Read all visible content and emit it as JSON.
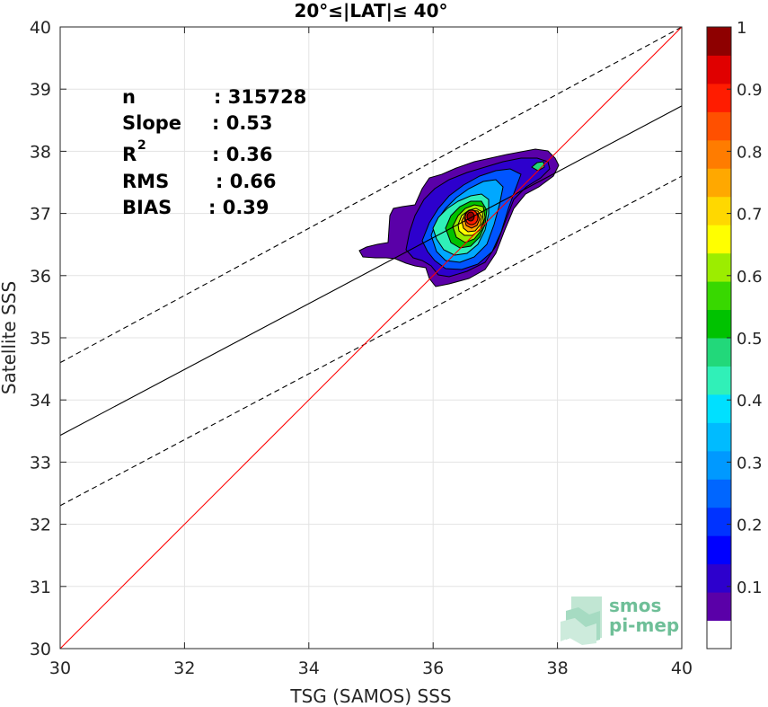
{
  "chart_data": {
    "type": "heatmap",
    "title": "20°≤|LAT|≤ 40°",
    "xlabel": "TSG (SAMOS) SSS",
    "ylabel": "Satellite SSS",
    "xlim": [
      30,
      40
    ],
    "ylim": [
      30,
      40
    ],
    "x_ticks": [
      "30",
      "32",
      "34",
      "36",
      "38",
      "40"
    ],
    "y_ticks": [
      "30",
      "31",
      "32",
      "33",
      "34",
      "35",
      "36",
      "37",
      "38",
      "39",
      "40"
    ],
    "grid": true,
    "stats": [
      {
        "label": "n",
        "value": ": 315728"
      },
      {
        "label": "Slope",
        "value": ": 0.53"
      },
      {
        "label": "R",
        "sup": "2",
        "value": ": 0.36"
      },
      {
        "label": "RMS",
        "value": ": 0.66"
      },
      {
        "label": "BIAS",
        "value": ": 0.39"
      }
    ],
    "lines": {
      "identity": {
        "x": [
          30,
          40
        ],
        "y": [
          30,
          40
        ],
        "color": "#ff0000"
      },
      "fit": {
        "x": [
          30,
          40
        ],
        "y": [
          33.43,
          38.73
        ],
        "color": "#000000"
      },
      "fit_upper": {
        "x": [
          30,
          40
        ],
        "y": [
          34.6,
          40.0
        ],
        "color": "#000000",
        "dashed": true
      },
      "fit_lower": {
        "x": [
          30,
          40
        ],
        "y": [
          32.3,
          37.6
        ],
        "color": "#000000",
        "dashed": true
      }
    },
    "density_center": {
      "x": 36.62,
      "y": 36.93
    },
    "colorbar": {
      "range": [
        0,
        1
      ],
      "tick_labels": [
        "0.1",
        "0.2",
        "0.3",
        "0.4",
        "0.5",
        "0.6",
        "0.7",
        "0.8",
        "0.9",
        "1"
      ],
      "colors": [
        "#ffffff",
        "#5a00a8",
        "#2d00cd",
        "#0000ff",
        "#0033ff",
        "#0066ff",
        "#0099ff",
        "#00bbff",
        "#00e0ff",
        "#30f0b8",
        "#22d87a",
        "#00c200",
        "#38d800",
        "#9ced00",
        "#ffff00",
        "#ffd800",
        "#ffa800",
        "#ff7c00",
        "#ff5000",
        "#ff1c00",
        "#e00000",
        "#8e0000"
      ]
    }
  },
  "watermark": {
    "line1": "smos",
    "line2": "pi-mep"
  }
}
